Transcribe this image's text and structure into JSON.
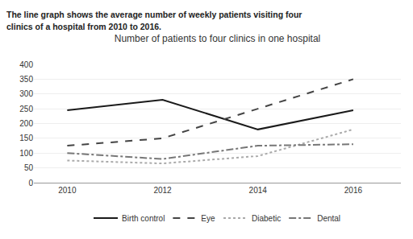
{
  "chart_data": {
    "type": "line",
    "title": "Number of patients to four clinics in one hospital",
    "annotations": [
      "The line graph shows the average number of weekly patients visiting four",
      "clinics of a hospital from 2010 to 2016."
    ],
    "x": [
      2010,
      2012,
      2014,
      2016
    ],
    "series": [
      {
        "name": "Birth control",
        "color": "#1a1a1a",
        "line_style": "solid",
        "values": [
          245,
          280,
          180,
          245
        ]
      },
      {
        "name": "Eye",
        "color": "#444444",
        "line_style": "dashed",
        "values": [
          125,
          150,
          250,
          350
        ]
      },
      {
        "name": "Diabetic",
        "color": "#aaaaaa",
        "line_style": "dotted",
        "values": [
          75,
          65,
          90,
          180
        ]
      },
      {
        "name": "Dental",
        "color": "#777777",
        "line_style": "dashdot",
        "values": [
          100,
          80,
          125,
          130
        ]
      }
    ],
    "xlim": [
      2009.3,
      2017.0
    ],
    "xticks": [
      2010,
      2012,
      2014,
      2016
    ],
    "ylim": [
      0,
      400
    ],
    "yticks": [
      0,
      50,
      100,
      150,
      200,
      250,
      300,
      350,
      400
    ],
    "grid": true,
    "legend": "bottom"
  }
}
